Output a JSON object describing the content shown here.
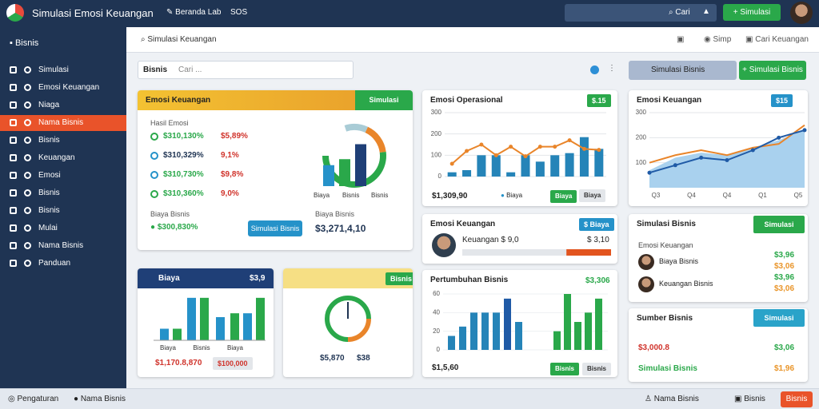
{
  "header": {
    "title": "Simulasi Emosi Keuangan",
    "nav": "Beranda Lab",
    "nav_tag": "SOS",
    "search": "Cari",
    "button": "Simulasi"
  },
  "sidebar": {
    "title": "Bisnis",
    "items": [
      "Simulasi",
      "Emosi Keuangan",
      "Niaga",
      "Nama Bisnis",
      "Bisnis",
      "Keuangan",
      "Emosi",
      "Bisnis",
      "Bisnis",
      "Mulai",
      "Nama Bisnis",
      "Panduan"
    ]
  },
  "breadcrumb": "Simulasi Keuangan",
  "toolbar": [
    "Simp",
    "Cari Keuangan"
  ],
  "search": {
    "label": "Bisnis",
    "placeholder": "Cari ..."
  },
  "buttons": [
    "Simulasi Bisnis",
    "Simulasi Bisnis"
  ],
  "cards": [
    {
      "title": "Emosi Keuangan",
      "badge": "Simulasi",
      "section1": "Hasil Emosi",
      "rows": [
        [
          "$310,130%",
          "$5,89%"
        ],
        [
          "$310,329%",
          "9,1%"
        ],
        [
          "$310,730%",
          "$9,8%"
        ],
        [
          "$310,360%",
          "9,0%"
        ]
      ],
      "section2": "Biaya Bisnis",
      "total": "$300,830%",
      "button": "Simulasi Bisnis",
      "section3": "Biaya Bisnis",
      "total2": "$3,271,4,10",
      "chart": {
        "ring": [
          15,
          20,
          65
        ],
        "bars": [
          35,
          45,
          70
        ],
        "labels": [
          "Biaya",
          "Bisnis",
          "Bisnis"
        ]
      }
    },
    {
      "title": "Emosi Operasional",
      "badge": "$.15",
      "chart": {
        "ylim": [
          0,
          300
        ],
        "yticks": [
          0,
          100,
          200,
          300
        ],
        "bars": [
          20,
          30,
          100,
          100,
          20,
          100,
          70,
          100,
          110,
          185,
          130
        ],
        "line": [
          60,
          120,
          150,
          100,
          140,
          95,
          140,
          140,
          170,
          130,
          125
        ]
      },
      "footer": [
        "$1,309,90",
        "Biaya",
        "Biaya",
        "Biaya"
      ]
    },
    {
      "title": "Emosi Keuangan",
      "badge": "$15",
      "chart": {
        "ylim": [
          0,
          300
        ],
        "yticks": [
          100,
          200,
          300
        ],
        "categories": [
          "Q3",
          "Q4",
          "Q4",
          "Q1",
          "Q5"
        ],
        "area": [
          70,
          120,
          140,
          130,
          160,
          190,
          230
        ],
        "line": [
          60,
          90,
          120,
          110,
          150,
          200,
          230
        ],
        "line2": [
          100,
          130,
          150,
          130,
          160,
          175,
          250
        ]
      }
    },
    {
      "title": "Emosi Keuangan",
      "badge": "$ Biaya",
      "label": "Keuangan $ 9,0",
      "value": "$ 3,10",
      "progress": 70
    },
    {
      "title": "Simulasi Bisnis",
      "badge": "Simulasi",
      "subtitle": "Emosi Keuangan",
      "rows": [
        [
          "Biaya Bisnis",
          "$3,96",
          "$3,06"
        ],
        [
          "Keuangan Bisnis",
          "$3,96",
          "$3,06"
        ]
      ]
    },
    {
      "title": "Sumber Bisnis",
      "badge": "Simulasi",
      "value": "$3,000.8",
      "value2": "$3,06",
      "label": "Simulasi Bisnis",
      "value3": "$1,96"
    },
    {
      "title": "Biaya",
      "badge": "$3,9",
      "chart": {
        "bars": [
          15,
          15,
          55,
          55,
          30,
          35,
          35,
          55
        ],
        "labels": [
          "Biaya",
          "Bisnis",
          "Biaya"
        ]
      },
      "footer": [
        "$1,170.8,870",
        "$100,000"
      ]
    },
    {
      "title": "Bisnis",
      "chart": {
        "ring": [
          75,
          25
        ]
      },
      "footer": [
        "$5,870",
        "$38"
      ]
    },
    {
      "title": "Pertumbuhan Bisnis",
      "badge": "$3,306",
      "chart": {
        "ylim": [
          0,
          60
        ],
        "yticks": [
          0,
          20,
          40,
          60
        ],
        "bars": [
          15,
          25,
          40,
          40,
          40,
          55,
          30
        ],
        "bars2": [
          20,
          60,
          30,
          40,
          55
        ]
      },
      "footer": [
        "$1,5,60",
        "Bisnis",
        "Bisnis"
      ]
    }
  ],
  "footer": {
    "left": [
      "Pengaturan",
      "Nama Bisnis"
    ],
    "right": [
      "Nama Bisnis",
      "Bisnis"
    ],
    "button": "Bisnis"
  }
}
